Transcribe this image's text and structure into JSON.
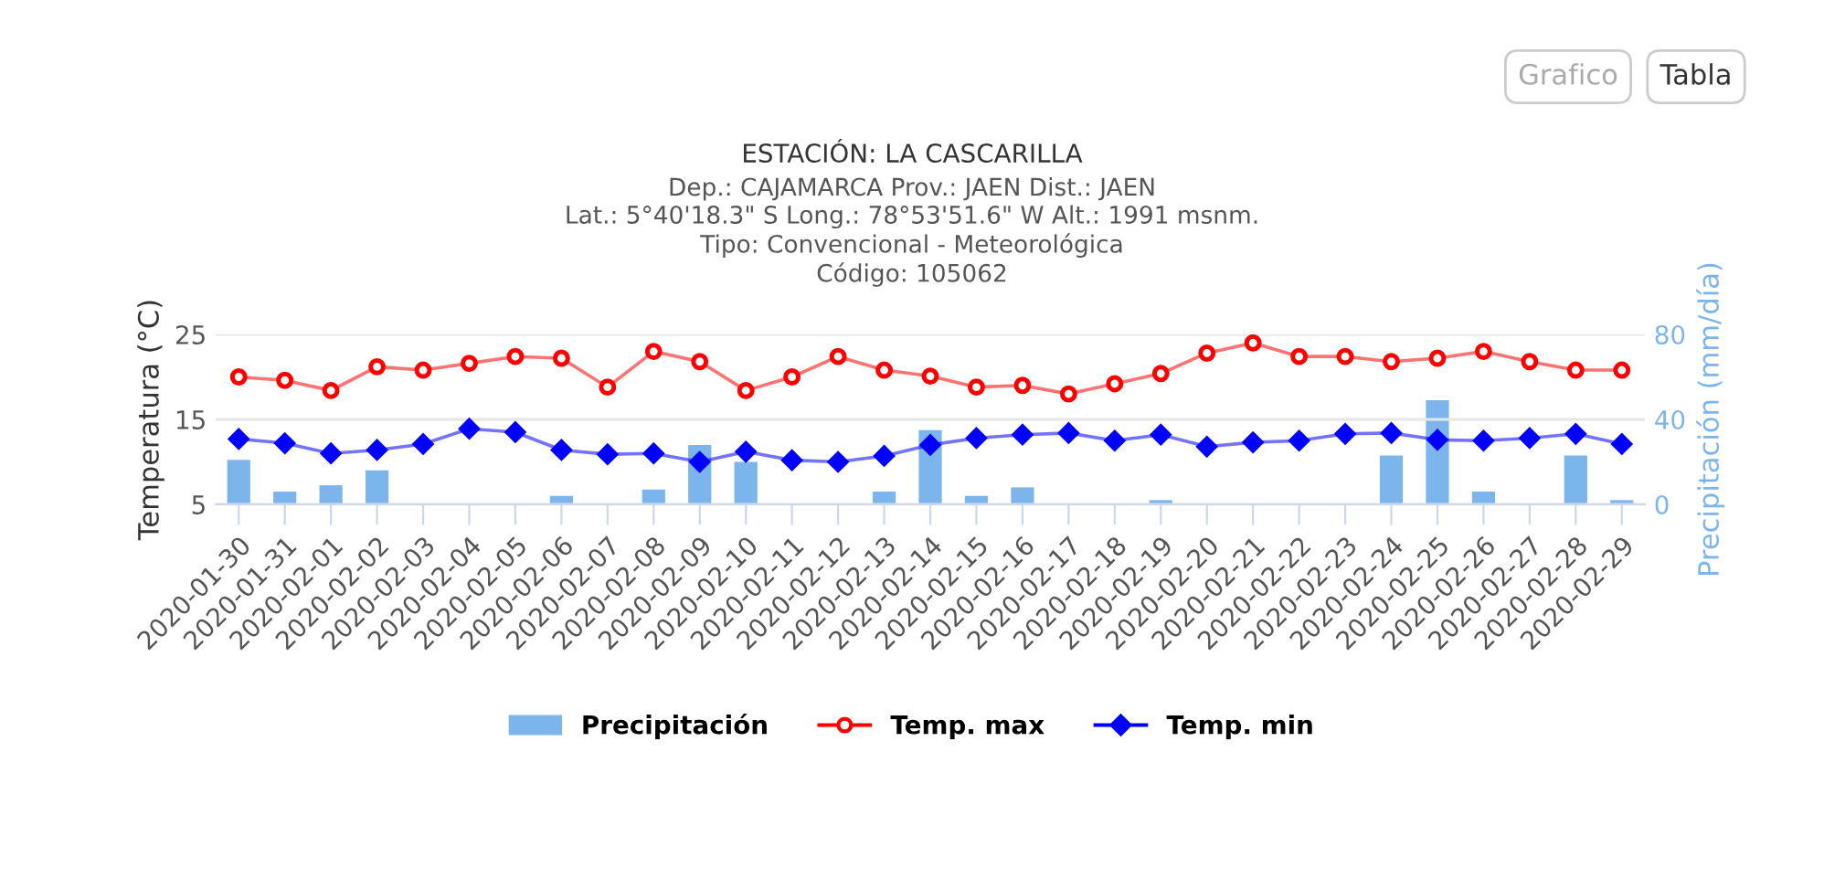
{
  "chart_data": {
    "type": "line",
    "title": "ESTACIÓN: LA CASCARILLA",
    "subtitle": "Dep.: CAJAMARCA Prov.: JAEN Dist.: JAEN\nLat.: 5°40'18.3\" S Long.: 78°53'51.6\" W Alt.: 1991 msnm.\nTipo: Convencional - Meteorológica\nCódigo: 105062",
    "ylabel": "Temperatura (°C)",
    "y2label": "Precipitación (mm/día)",
    "annotations": [
      "Grafico",
      "Tabla"
    ],
    "categories": [
      "2020-01-30",
      "2020-01-31",
      "2020-02-01",
      "2020-02-02",
      "2020-02-03",
      "2020-02-04",
      "2020-02-05",
      "2020-02-06",
      "2020-02-07",
      "2020-02-08",
      "2020-02-09",
      "2020-02-10",
      "2020-02-11",
      "2020-02-12",
      "2020-02-13",
      "2020-02-14",
      "2020-02-15",
      "2020-02-16",
      "2020-02-17",
      "2020-02-18",
      "2020-02-19",
      "2020-02-20",
      "2020-02-21",
      "2020-02-22",
      "2020-02-23",
      "2020-02-24",
      "2020-02-25",
      "2020-02-26",
      "2020-02-27",
      "2020-02-28",
      "2020-02-29"
    ],
    "ylim": [
      5,
      25
    ],
    "yticks": [
      5,
      15,
      25
    ],
    "y2lim": [
      0,
      80
    ],
    "y2ticks": [
      0,
      40,
      80
    ],
    "grid": "y",
    "legend": "bottom",
    "series": [
      {
        "name": "Precipitación",
        "type": "bar",
        "axis": "y2",
        "color": "#7cb5ec",
        "values": [
          21,
          6,
          9,
          16,
          0,
          0,
          0,
          4,
          0,
          7,
          28,
          20,
          0,
          0,
          6,
          35,
          4,
          8,
          0,
          0,
          2,
          0,
          0,
          0,
          0,
          23,
          49,
          6,
          0,
          23,
          2
        ]
      },
      {
        "name": "Temp. max",
        "color": "#ff0000",
        "marker": "circle",
        "values": [
          20.0,
          19.6,
          18.4,
          21.2,
          20.8,
          21.6,
          22.4,
          22.2,
          18.8,
          23.0,
          21.8,
          18.4,
          20.0,
          22.4,
          20.8,
          20.1,
          18.8,
          19.0,
          18.0,
          19.2,
          20.4,
          22.8,
          24.0,
          22.4,
          22.4,
          21.8,
          22.2,
          23.0,
          21.8,
          20.8,
          20.8
        ]
      },
      {
        "name": "Temp. min",
        "color": "#0000ff",
        "marker": "diamond",
        "values": [
          12.7,
          12.2,
          11.0,
          11.4,
          12.1,
          13.9,
          13.5,
          11.4,
          10.9,
          11.0,
          10.0,
          11.2,
          10.2,
          10.0,
          10.7,
          12.0,
          12.8,
          13.2,
          13.4,
          12.5,
          13.2,
          11.8,
          12.3,
          12.5,
          13.3,
          13.4,
          12.6,
          12.5,
          12.8,
          13.3,
          12.1
        ]
      }
    ]
  }
}
